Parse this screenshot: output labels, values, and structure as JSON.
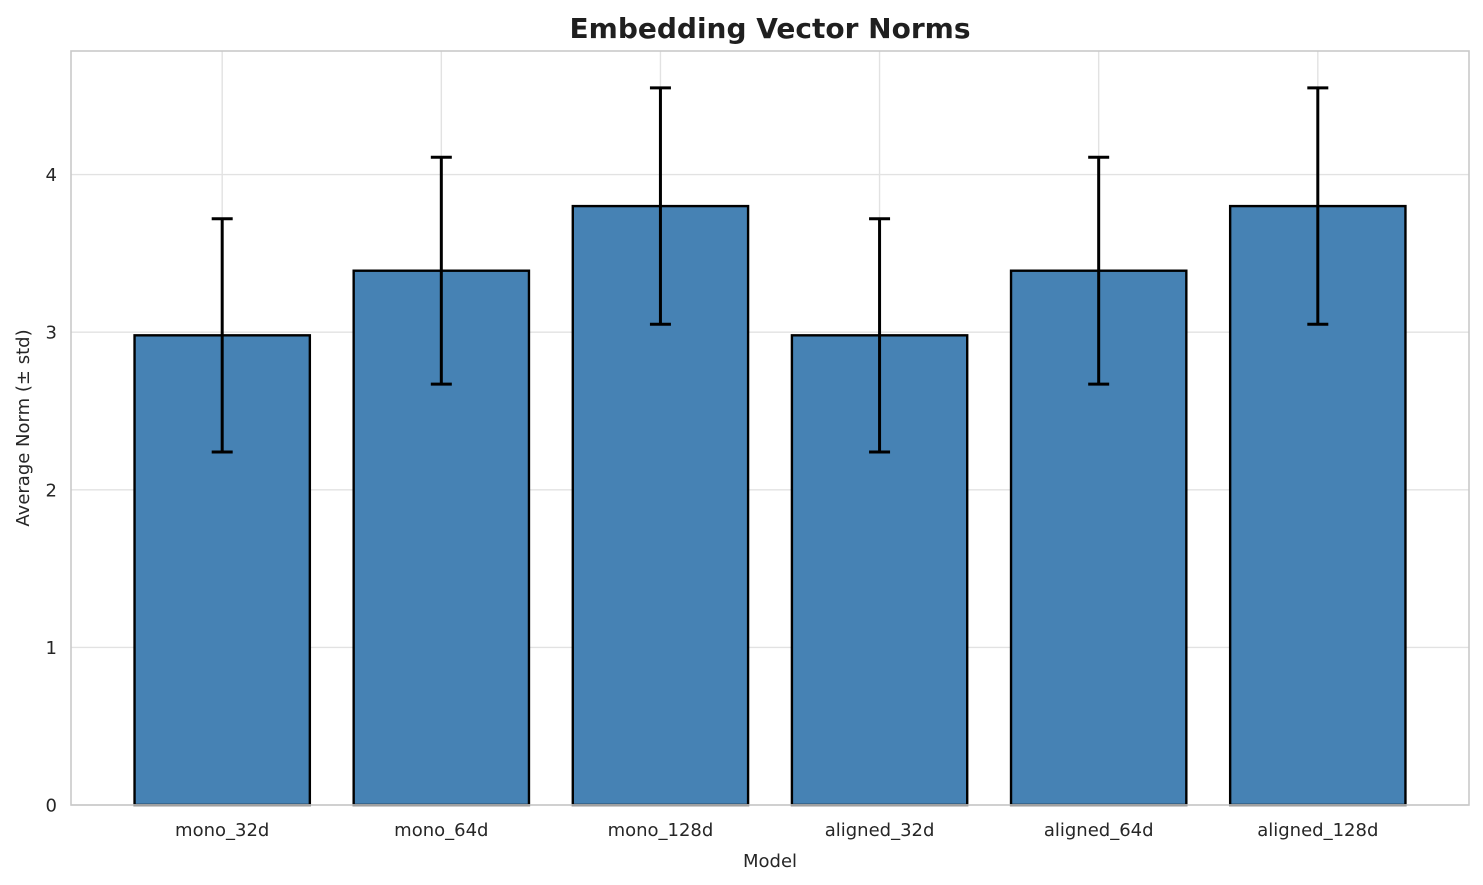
{
  "chart_data": {
    "type": "bar",
    "title": "Embedding Vector Norms",
    "xlabel": "Model",
    "ylabel": "Average Norm (± std)",
    "categories": [
      "mono_32d",
      "mono_64d",
      "mono_128d",
      "aligned_32d",
      "aligned_64d",
      "aligned_128d"
    ],
    "values": [
      2.98,
      3.39,
      3.8,
      2.98,
      3.39,
      3.8
    ],
    "errors": [
      0.74,
      0.72,
      0.75,
      0.74,
      0.72,
      0.75
    ],
    "yticks": [
      0,
      1,
      2,
      3,
      4
    ],
    "ylim": [
      0,
      4.784
    ],
    "xlim": [
      -0.69,
      5.69
    ],
    "bar_width": 0.8,
    "legend": "none",
    "grid": "horizontal-and-vertical",
    "colors": {
      "bar_fill": "#4682b4",
      "bar_edge": "#000000",
      "error_bar": "#000000",
      "grid_line": "#e2e2e2",
      "spine": "#c9c9c9",
      "text": "#262626",
      "title_text": "#1f1f1f",
      "background": "#ffffff"
    }
  }
}
